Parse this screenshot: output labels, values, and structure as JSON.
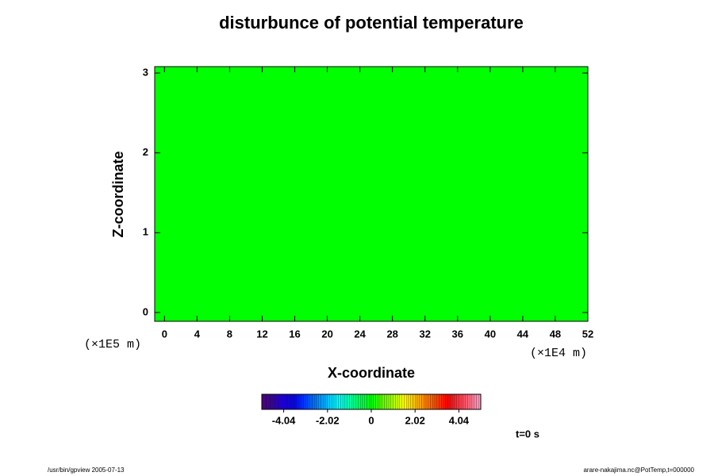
{
  "chart_data": {
    "type": "heatmap",
    "title": "disturbunce of potential temperature",
    "x_label": "X-coordinate",
    "y_label": "Z-coordinate",
    "x_scale_label": "(×1E4 m)",
    "y_scale_label": "(×1E5 m)",
    "xlim": [
      -1.2,
      52
    ],
    "xticks": [
      0,
      4,
      8,
      12,
      16,
      20,
      24,
      28,
      32,
      36,
      40,
      44,
      48,
      52
    ],
    "ylim": [
      -0.11,
      3.08
    ],
    "yticks": [
      0,
      1,
      2,
      3
    ],
    "field": {
      "value": 0,
      "color": "#00ff00"
    },
    "colorbar": {
      "clim": [
        -5.05,
        5.05
      ],
      "ticks": [
        -4.04,
        -2.02,
        0,
        2.02,
        4.04
      ]
    },
    "time_label": "t=0 s",
    "footer_left": "/usr/bin/gpview 2005-07-13",
    "footer_right": "arare-nakajima.nc@PotTemp,t=000000"
  }
}
